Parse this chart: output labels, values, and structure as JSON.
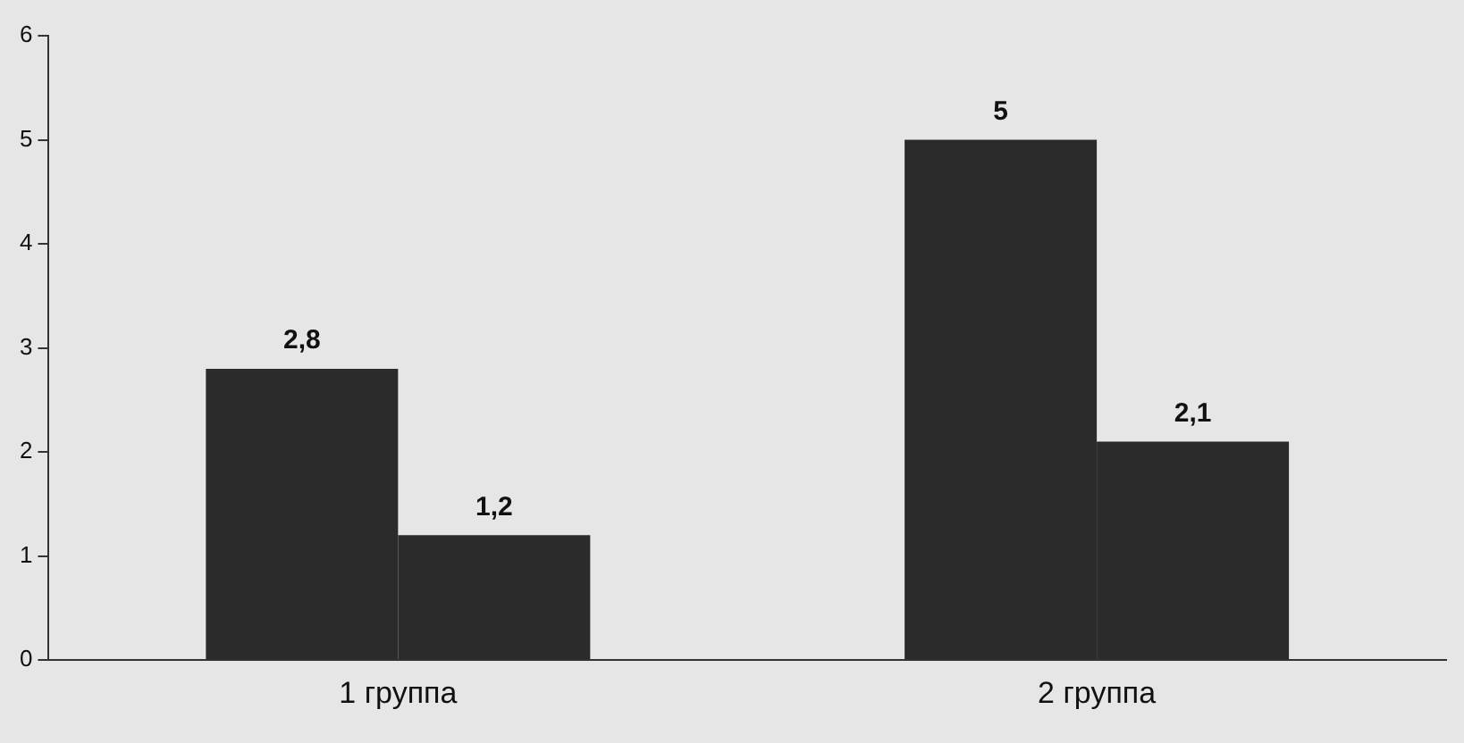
{
  "chart_data": {
    "type": "bar",
    "categories": [
      "1 группа",
      "2 группа"
    ],
    "series": [
      {
        "color": "#2b2b2b",
        "values": [
          2.8,
          5
        ],
        "value_labels": [
          "2,8",
          "5"
        ]
      },
      {
        "color": "#2b2b2b",
        "values": [
          1.2,
          2.1
        ],
        "value_labels": [
          "1,2",
          "2,1"
        ]
      }
    ],
    "ylim": [
      0,
      6
    ],
    "yticks": [
      0,
      1,
      2,
      3,
      4,
      5,
      6
    ],
    "grid": false,
    "legend": false
  }
}
